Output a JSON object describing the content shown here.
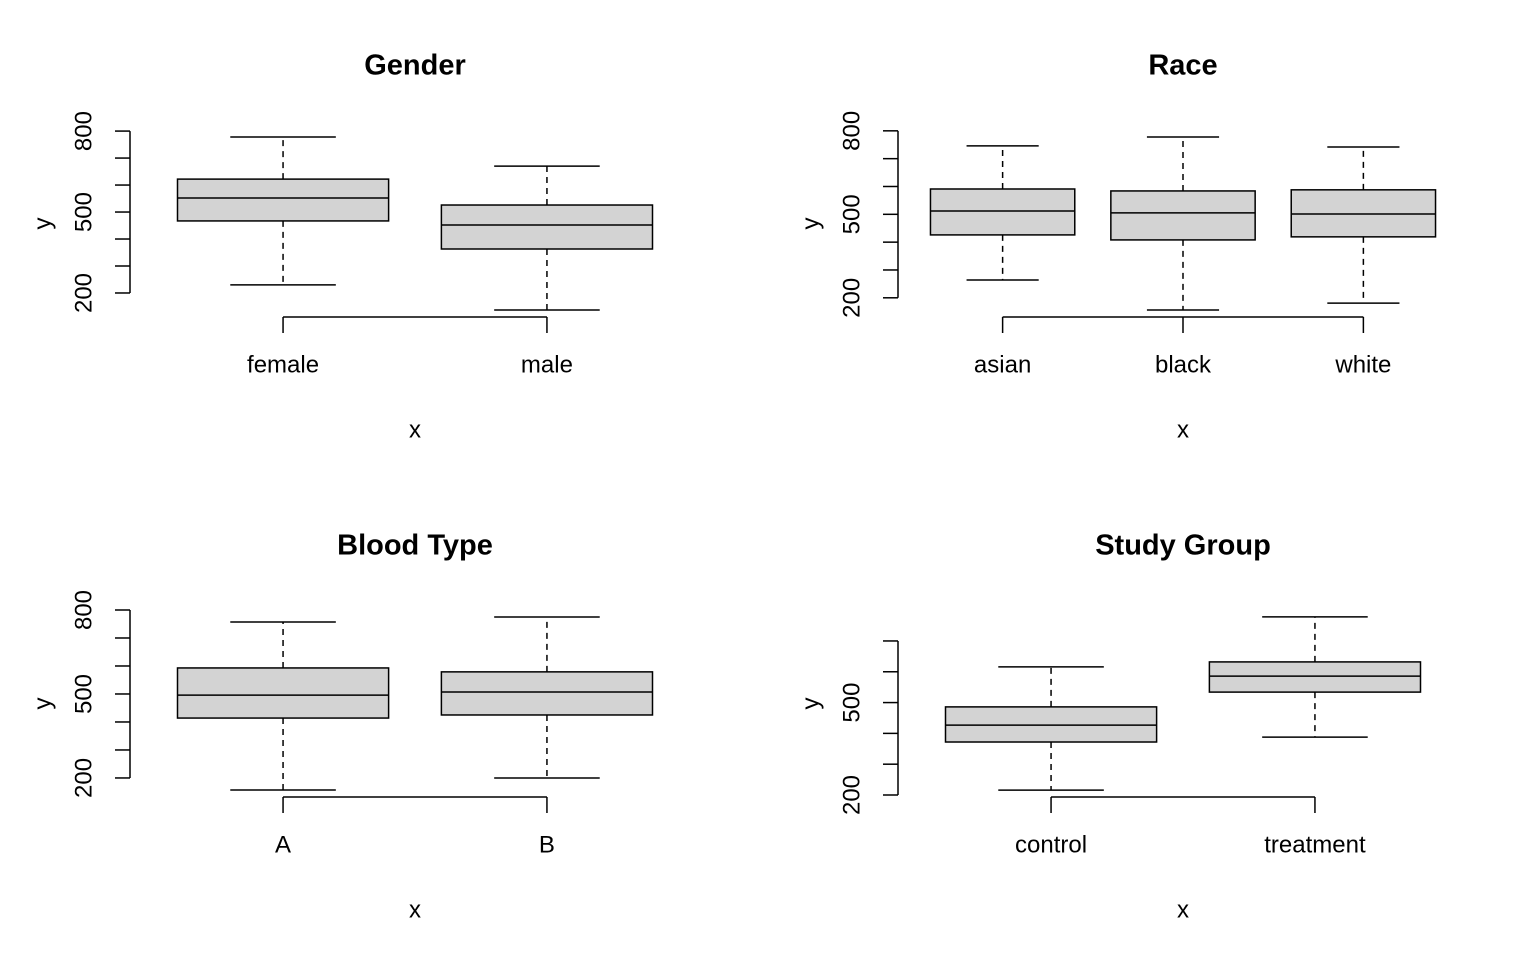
{
  "chart_data": [
    {
      "type": "box",
      "title": "Gender",
      "xlabel": "x",
      "ylabel": "y",
      "categories": [
        "female",
        "male"
      ],
      "whisker_low": [
        230,
        137
      ],
      "q1": [
        467,
        363
      ],
      "median": [
        552,
        452
      ],
      "q3": [
        622,
        526
      ],
      "whisker_high": [
        778,
        670
      ],
      "ylim": [
        111,
        804
      ],
      "yticks": [
        200,
        500,
        800
      ],
      "yminorticks": [
        300,
        400,
        600,
        700
      ],
      "fill": "#d3d3d3"
    },
    {
      "type": "box",
      "title": "Race",
      "xlabel": "x",
      "ylabel": "y",
      "categories": [
        "asian",
        "black",
        "white"
      ],
      "whisker_low": [
        264,
        156,
        181
      ],
      "q1": [
        426,
        408,
        419
      ],
      "median": [
        512,
        505,
        501
      ],
      "q3": [
        591,
        584,
        588
      ],
      "whisker_high": [
        746,
        778,
        742
      ],
      "ylim": [
        131,
        803
      ],
      "yticks": [
        200,
        500,
        800
      ],
      "yminorticks": [
        300,
        400,
        600,
        700
      ],
      "fill": "#d3d3d3"
    },
    {
      "type": "box",
      "title": "Blood Type",
      "xlabel": "x",
      "ylabel": "y",
      "categories": [
        "A",
        "B"
      ],
      "whisker_low": [
        157,
        200
      ],
      "q1": [
        414,
        425
      ],
      "median": [
        496,
        507
      ],
      "q3": [
        593,
        579
      ],
      "whisker_high": [
        757,
        775
      ],
      "ylim": [
        132,
        800
      ],
      "yticks": [
        200,
        500,
        800
      ],
      "yminorticks": [
        300,
        400,
        600,
        700
      ],
      "fill": "#d3d3d3"
    },
    {
      "type": "box",
      "title": "Study Group",
      "xlabel": "x",
      "ylabel": "y",
      "categories": [
        "control",
        "treatment"
      ],
      "whisker_low": [
        216,
        388
      ],
      "q1": [
        372,
        534
      ],
      "median": [
        427,
        586
      ],
      "q3": [
        486,
        632
      ],
      "whisker_high": [
        616,
        778
      ],
      "ylim": [
        193.5,
        800.5
      ],
      "yticks": [
        200,
        500
      ],
      "yminorticks": [
        300,
        400,
        600,
        700
      ],
      "fill": "#d3d3d3"
    }
  ]
}
